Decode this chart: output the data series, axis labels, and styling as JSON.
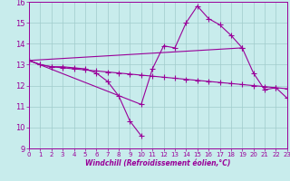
{
  "xlabel": "Windchill (Refroidissement éolien,°C)",
  "xlim": [
    0,
    23
  ],
  "ylim": [
    9,
    16
  ],
  "yticks": [
    9,
    10,
    11,
    12,
    13,
    14,
    15,
    16
  ],
  "xticks": [
    0,
    1,
    2,
    3,
    4,
    5,
    6,
    7,
    8,
    9,
    10,
    11,
    12,
    13,
    14,
    15,
    16,
    17,
    18,
    19,
    20,
    21,
    22,
    23
  ],
  "bg_color": "#c8ecec",
  "grid_color": "#a0cccc",
  "line_color": "#990099",
  "line1_x": [
    0,
    1,
    2,
    3,
    4,
    5,
    6,
    7,
    8,
    9,
    10
  ],
  "line1_y": [
    13.2,
    13.0,
    12.9,
    12.9,
    12.85,
    12.8,
    12.6,
    12.2,
    11.5,
    10.3,
    9.6
  ],
  "line2_x": [
    0,
    10,
    11,
    12,
    13,
    14,
    15,
    16,
    17,
    18,
    19
  ],
  "line2_y": [
    13.2,
    11.1,
    12.8,
    13.9,
    13.8,
    15.0,
    15.8,
    15.2,
    14.9,
    14.4,
    13.8
  ],
  "line3_x": [
    0,
    19,
    20,
    21,
    22,
    23
  ],
  "line3_y": [
    13.2,
    13.8,
    12.6,
    11.8,
    11.9,
    11.4
  ],
  "line4_x": [
    0,
    1,
    2,
    3,
    4,
    5,
    6,
    7,
    8,
    9,
    10,
    11,
    12,
    13,
    14,
    15,
    16,
    17,
    18,
    19,
    20,
    21,
    22,
    23
  ],
  "line4_y": [
    13.2,
    13.0,
    12.9,
    12.85,
    12.8,
    12.75,
    12.7,
    12.65,
    12.6,
    12.55,
    12.5,
    12.45,
    12.4,
    12.35,
    12.3,
    12.25,
    12.2,
    12.15,
    12.1,
    12.05,
    12.0,
    11.95,
    11.9,
    11.85
  ]
}
